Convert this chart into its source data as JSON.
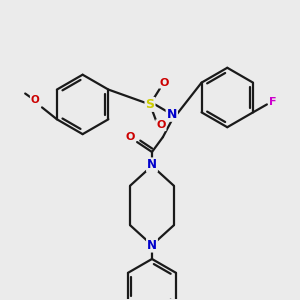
{
  "background_color": "#ebebeb",
  "bond_color": "#1a1a1a",
  "atom_colors": {
    "N": "#0000cc",
    "O": "#cc0000",
    "S": "#cccc00",
    "F": "#cc00cc",
    "C": "#1a1a1a"
  },
  "figsize": [
    3.0,
    3.0
  ],
  "dpi": 100
}
